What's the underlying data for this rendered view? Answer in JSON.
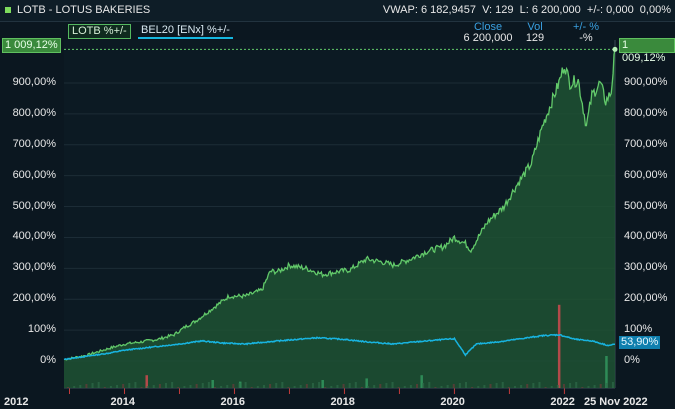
{
  "window": {
    "title": "LOTB - LOTUS BAKERIES",
    "quote": "VWAP: 6 182,9457  V: 129  L: 6 200,000  +/-: 0,000  0,00%"
  },
  "legend": {
    "series1": "LOTB %+/-",
    "series2": "BEL20 [ENx] %+/-"
  },
  "stats": {
    "close_label": "Close",
    "close_value": "6 200,000",
    "vol_label": "Vol",
    "vol_value": "129",
    "change_label": "+/- %",
    "change_value": "-%"
  },
  "tags": {
    "lotb_left": "1 009,12%",
    "lotb_right": "1 009,12%",
    "bel20_right": "53,90%"
  },
  "colors": {
    "background": "#0b1720",
    "lotb_line": "#62c96a",
    "lotb_fill": "#1f5233",
    "bel20_line": "#18b4e0",
    "volume_up": "#2e8b57",
    "volume_down": "#b34a4a"
  },
  "chart_data": {
    "type": "line",
    "y_unit": "%",
    "ylim": [
      -60,
      1060
    ],
    "xlim": [
      2012.9,
      2022.92
    ],
    "x_tick_labels": [
      "2012",
      "2014",
      "2016",
      "2018",
      "2020",
      "2022",
      "25 Nov 2022"
    ],
    "y_tick_labels": [
      "0%",
      "100%",
      "200,00%",
      "300,00%",
      "400,00%",
      "500,00%",
      "600,00%",
      "700,00%",
      "800,00%",
      "900,00%"
    ],
    "y_tick_values": [
      0,
      100,
      200,
      300,
      400,
      500,
      600,
      700,
      800,
      900
    ],
    "series": [
      {
        "name": "LOTB %+/-",
        "x": [
          2012.9,
          2013.3,
          2013.7,
          2014.0,
          2014.3,
          2014.6,
          2014.9,
          2015.1,
          2015.3,
          2015.6,
          2015.9,
          2016.2,
          2016.5,
          2016.65,
          2016.8,
          2017.0,
          2017.3,
          2017.6,
          2017.9,
          2018.1,
          2018.4,
          2018.7,
          2018.9,
          2019.2,
          2019.5,
          2019.8,
          2020.0,
          2020.2,
          2020.3,
          2020.6,
          2020.9,
          2021.1,
          2021.4,
          2021.6,
          2021.75,
          2021.9,
          2022.0,
          2022.1,
          2022.25,
          2022.4,
          2022.5,
          2022.65,
          2022.75,
          2022.85,
          2022.92
        ],
        "values": [
          5,
          18,
          40,
          55,
          62,
          70,
          85,
          110,
          130,
          170,
          210,
          210,
          230,
          290,
          290,
          310,
          300,
          280,
          290,
          295,
          330,
          320,
          310,
          330,
          355,
          370,
          400,
          380,
          360,
          450,
          500,
          560,
          640,
          760,
          830,
          900,
          960,
          900,
          910,
          760,
          860,
          900,
          840,
          870,
          1009
        ]
      },
      {
        "name": "BEL20 [ENx] %+/-",
        "x": [
          2012.9,
          2013.3,
          2013.7,
          2014.0,
          2014.5,
          2015.0,
          2015.4,
          2015.8,
          2016.2,
          2016.6,
          2017.0,
          2017.5,
          2018.0,
          2018.4,
          2018.9,
          2019.3,
          2019.7,
          2020.0,
          2020.2,
          2020.4,
          2020.8,
          2021.2,
          2021.6,
          2021.9,
          2022.2,
          2022.5,
          2022.8,
          2022.92
        ],
        "values": [
          5,
          15,
          25,
          35,
          45,
          55,
          65,
          58,
          55,
          62,
          68,
          75,
          70,
          62,
          55,
          62,
          68,
          72,
          20,
          55,
          62,
          72,
          82,
          85,
          70,
          65,
          50,
          54
        ]
      }
    ],
    "volume_spikes": [
      {
        "x": 2014.4,
        "kind": "down",
        "height": 8
      },
      {
        "x": 2015.6,
        "kind": "up",
        "height": 5
      },
      {
        "x": 2016.1,
        "kind": "up",
        "height": 4
      },
      {
        "x": 2017.6,
        "kind": "up",
        "height": 5
      },
      {
        "x": 2018.4,
        "kind": "up",
        "height": 6
      },
      {
        "x": 2019.4,
        "kind": "up",
        "height": 8
      },
      {
        "x": 2021.9,
        "kind": "down",
        "height": 52
      },
      {
        "x": 2022.76,
        "kind": "up",
        "height": 20
      }
    ]
  }
}
